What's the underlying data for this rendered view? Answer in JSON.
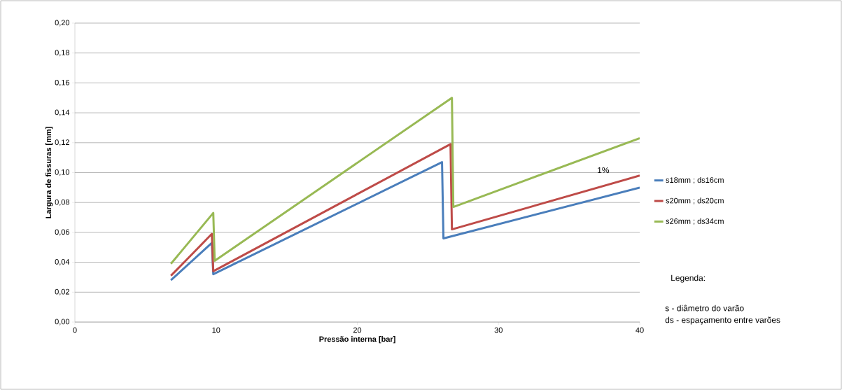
{
  "chart_data": {
    "type": "line",
    "xlabel": "Pressão interna [bar]",
    "ylabel": "Largura de fissuras [mm]",
    "series": [
      {
        "name": "s18mm ; ds16cm",
        "color": "#4a7ebb",
        "x": [
          6.8,
          9.7,
          9.8,
          26.0,
          26.1,
          40
        ],
        "values": [
          0.028,
          0.053,
          0.032,
          0.107,
          0.056,
          0.09
        ]
      },
      {
        "name": "s20mm ; ds20cm",
        "color": "#be4b48",
        "x": [
          6.8,
          9.7,
          9.8,
          26.6,
          26.7,
          40
        ],
        "values": [
          0.031,
          0.059,
          0.034,
          0.119,
          0.062,
          0.098
        ]
      },
      {
        "name": "s26mm ; ds34cm",
        "color": "#98b954",
        "x": [
          6.8,
          9.8,
          9.9,
          26.7,
          26.8,
          40
        ],
        "values": [
          0.039,
          0.073,
          0.041,
          0.15,
          0.077,
          0.123
        ]
      }
    ],
    "xlim": [
      0,
      40
    ],
    "xticks": [
      0,
      10,
      20,
      30,
      40
    ],
    "ylim": [
      0,
      0.2
    ],
    "yticks": [
      {
        "value": 0,
        "label": "0,00"
      },
      {
        "value": 0.02,
        "label": "0,02"
      },
      {
        "value": 0.04,
        "label": "0,04"
      },
      {
        "value": 0.06,
        "label": "0,06"
      },
      {
        "value": 0.08,
        "label": "0,08"
      },
      {
        "value": 0.1,
        "label": "0,10"
      },
      {
        "value": 0.12,
        "label": "0,12"
      },
      {
        "value": 0.14,
        "label": "0,14"
      },
      {
        "value": 0.16,
        "label": "0,16"
      },
      {
        "value": 0.18,
        "label": "0,18"
      },
      {
        "value": 0.2,
        "label": "0,20"
      }
    ],
    "grid": "y",
    "legend": "right",
    "marker": "none",
    "line_style": "solid",
    "annotations": [
      "1%",
      "Legenda:",
      "s - diâmetro do varão",
      "ds - espaçamento entre varões"
    ]
  }
}
